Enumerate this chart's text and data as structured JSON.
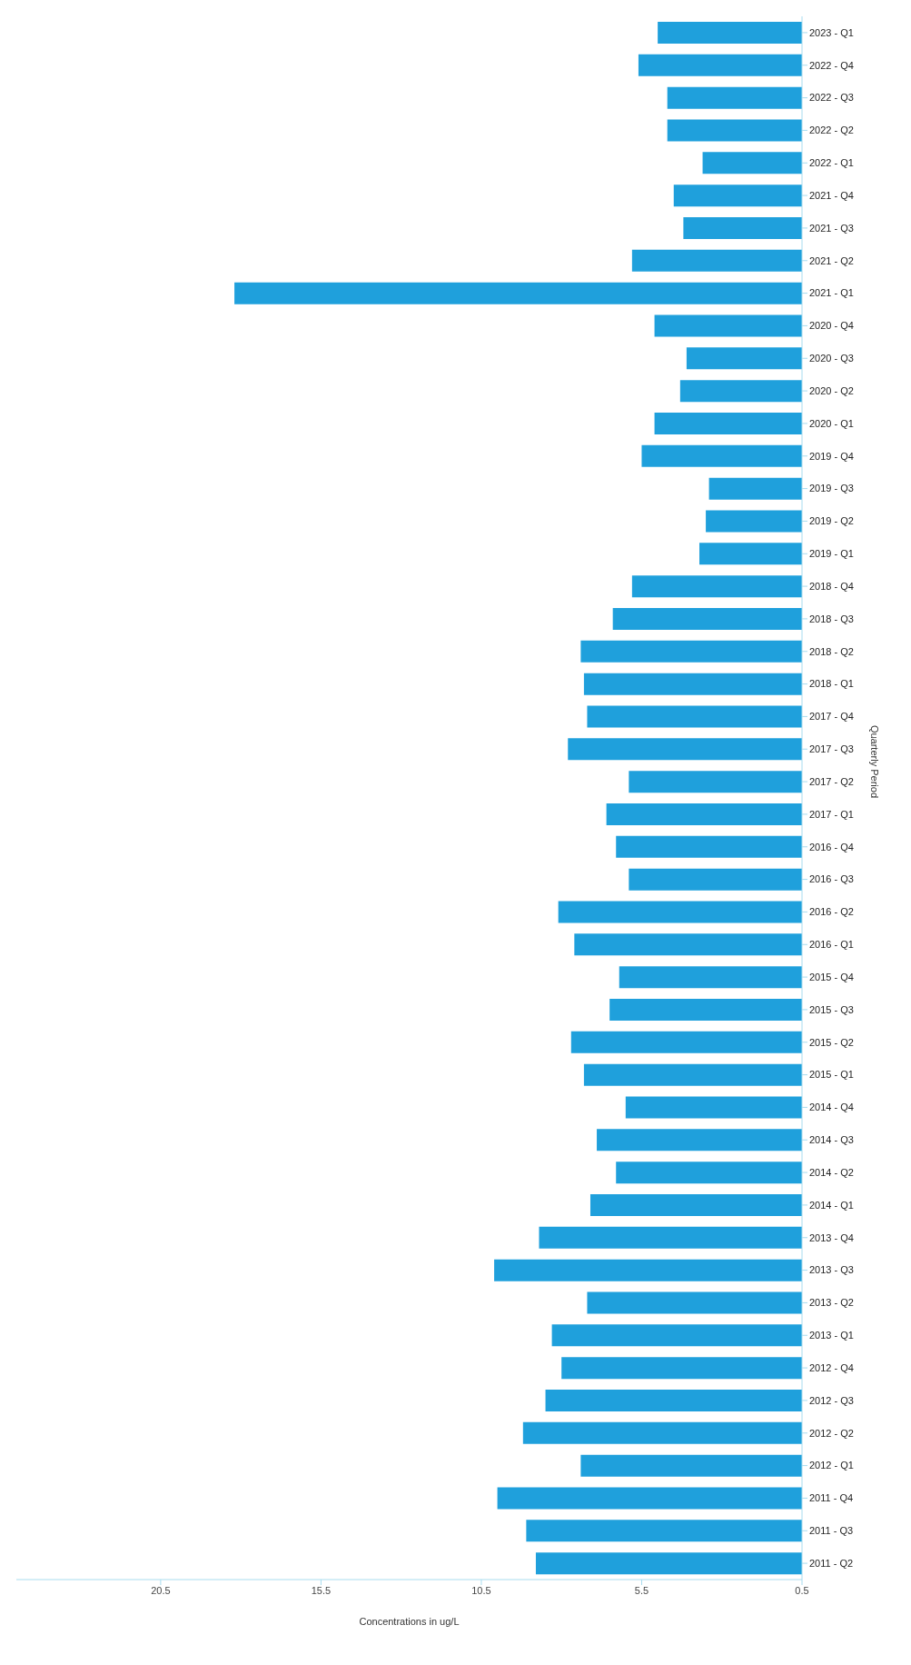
{
  "chart_data": {
    "type": "bar",
    "orientation": "horizontal",
    "xlabel": "Concentrations in ug/L",
    "ylabel": "Quarterly Period",
    "categories": [
      "2023 - Q1",
      "2022 - Q4",
      "2022 - Q3",
      "2022 - Q2",
      "2022 - Q1",
      "2021 - Q4",
      "2021 - Q3",
      "2021 - Q2",
      "2021 - Q1",
      "2020 - Q4",
      "2020 - Q3",
      "2020 - Q2",
      "2020 - Q1",
      "2019 - Q4",
      "2019 - Q3",
      "2019 - Q2",
      "2019 - Q1",
      "2018 - Q4",
      "2018 - Q3",
      "2018 - Q2",
      "2018 - Q1",
      "2017 - Q4",
      "2017 - Q3",
      "2017 - Q2",
      "2017 - Q1",
      "2016 - Q4",
      "2016 - Q3",
      "2016 - Q2",
      "2016 - Q1",
      "2015 - Q4",
      "2015 - Q3",
      "2015 - Q2",
      "2015 - Q1",
      "2014 - Q4",
      "2014 - Q3",
      "2014 - Q2",
      "2014 - Q1",
      "2013 - Q4",
      "2013 - Q3",
      "2013 - Q2",
      "2013 - Q1",
      "2012 - Q4",
      "2012 - Q3",
      "2012 - Q2",
      "2012 - Q1",
      "2011 - Q4",
      "2011 - Q3",
      "2011 - Q2"
    ],
    "values": [
      5.0,
      5.6,
      4.7,
      4.7,
      3.6,
      4.5,
      4.2,
      5.8,
      18.2,
      5.1,
      4.1,
      4.3,
      5.1,
      5.5,
      3.4,
      3.5,
      3.7,
      5.8,
      6.4,
      7.4,
      7.3,
      7.2,
      7.8,
      5.9,
      6.6,
      6.3,
      5.9,
      8.1,
      7.6,
      6.2,
      6.5,
      7.7,
      7.3,
      6.0,
      6.9,
      6.3,
      7.1,
      8.7,
      10.1,
      7.2,
      8.3,
      8.0,
      8.5,
      9.2,
      7.4,
      10.0,
      9.1,
      8.8
    ],
    "color": "#1fa0dc",
    "xlim": [
      25,
      0.5
    ],
    "xticks": [
      20.5,
      15.5,
      10.5,
      5.5,
      0.5
    ],
    "grid": false,
    "legend": false
  }
}
